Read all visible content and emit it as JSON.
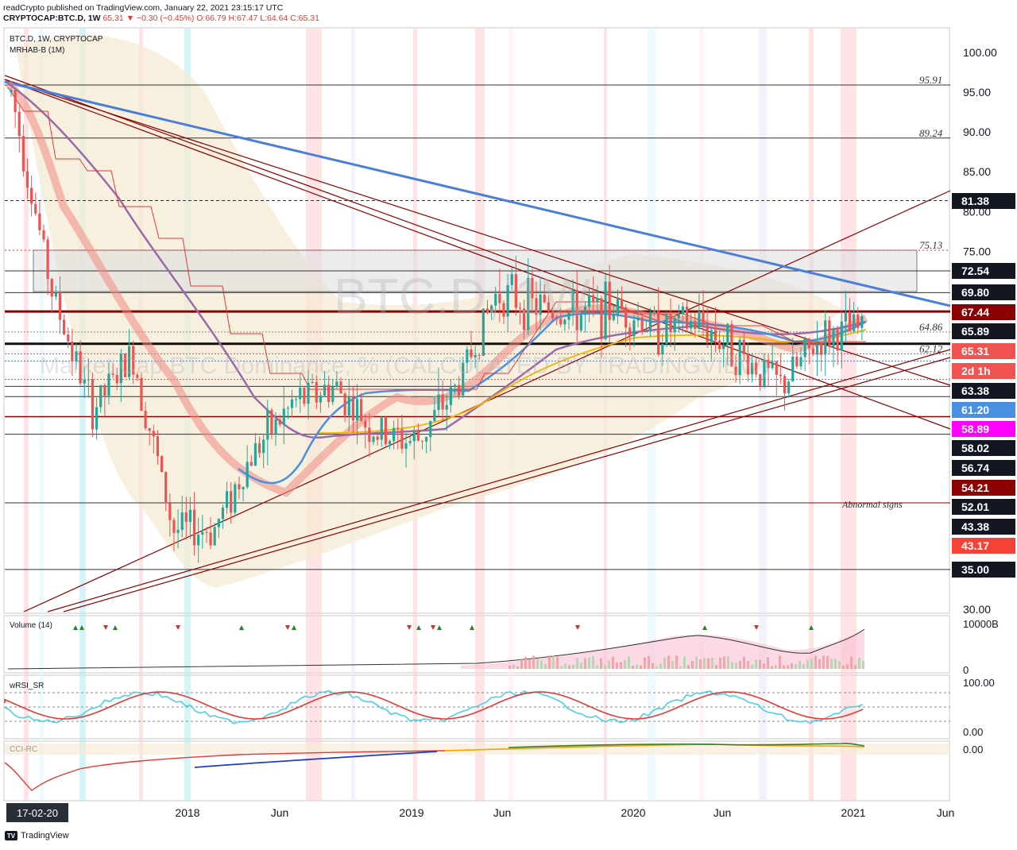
{
  "header": {
    "line1": "readCrypto published on TradingView.com, January 22, 2021 23:15:17 UTC",
    "symbol": "CRYPTOCAP:BTC.D, 1W",
    "change": "65.31 ▼ −0.30 (−0.45%)",
    "ohlc": "O:66.79 H:67.47 L:64.64 C:65.31"
  },
  "legend": {
    "title": "BTC.D, 1W, CRYPTOCAP",
    "indicator": "MRHAB-B (1M)"
  },
  "watermark": {
    "big": "BTC.D, 1W",
    "sub": "Market Cap BTC Dominance, % (CALCULATED BY TRADINGVIEW)"
  },
  "y_axis_ticks": [
    "100.00",
    "95.00",
    "90.00",
    "85.00",
    "80.00",
    "75.00",
    "30.00"
  ],
  "level_labels": [
    {
      "text": "95.91",
      "value": 95.91
    },
    {
      "text": "89.24",
      "value": 89.24
    },
    {
      "text": "75.13",
      "value": 75.13
    },
    {
      "text": "64.86",
      "value": 64.86
    },
    {
      "text": "62.12",
      "value": 62.12
    }
  ],
  "price_pills": [
    {
      "text": "81.38",
      "bg": "#131722",
      "top": 243
    },
    {
      "text": "72.54",
      "bg": "#131722",
      "top": 331
    },
    {
      "text": "69.80",
      "bg": "#131722",
      "top": 358
    },
    {
      "text": "67.44",
      "bg": "#8b0000",
      "top": 383
    },
    {
      "text": "65.89",
      "bg": "#131722",
      "top": 407
    },
    {
      "text": "65.31",
      "bg": "#f05350",
      "top": 432
    },
    {
      "text": "2d 1h",
      "bg": "#f05350",
      "top": 457
    },
    {
      "text": "63.38",
      "bg": "#131722",
      "top": 482
    },
    {
      "text": "61.20",
      "bg": "#4a90e2",
      "top": 506
    },
    {
      "text": "58.89",
      "bg": "#ff00ff",
      "top": 530
    },
    {
      "text": "58.02",
      "bg": "#131722",
      "top": 554
    },
    {
      "text": "56.74",
      "bg": "#131722",
      "top": 579
    },
    {
      "text": "54.21",
      "bg": "#8b0000",
      "top": 604
    },
    {
      "text": "52.01",
      "bg": "#131722",
      "top": 628
    },
    {
      "text": "43.38",
      "bg": "#131722",
      "top": 653
    },
    {
      "text": "43.17",
      "bg": "#f44336",
      "top": 677
    },
    {
      "text": "35.00",
      "bg": "#131722",
      "top": 707
    }
  ],
  "annotation": "Abnormal signs",
  "x_axis_labels": [
    "2018",
    "Jun",
    "2019",
    "Jun",
    "2020",
    "Jun",
    "2021",
    "Jun"
  ],
  "date_box": "17-02-20",
  "volume_pane": {
    "title": "Volume (14)",
    "ticks": [
      "10000B",
      "0"
    ]
  },
  "rsi_pane": {
    "title": "wRSI_SR",
    "ticks": [
      "100.00",
      "0.00"
    ]
  },
  "cci_pane": {
    "title": "CCI-RC",
    "ticks": [
      "0.00"
    ]
  },
  "footer": {
    "brand": "TradingView"
  },
  "colors": {
    "up": "#26a69a",
    "down": "#ef5350",
    "trend": "#8b0000",
    "blue_trend": "#4a7fd8",
    "box": "#d9d9d9"
  },
  "chart_data": {
    "type": "candlestick",
    "title": "BTC.D, 1W, CRYPTOCAP",
    "ylim": [
      30,
      100
    ],
    "x": [
      "2017-02",
      "2017-05",
      "2017-08",
      "2017-11",
      "2018-01",
      "2018-03",
      "2018-06",
      "2018-08",
      "2018-10",
      "2019-01",
      "2019-03",
      "2019-05",
      "2019-07",
      "2019-09",
      "2019-11",
      "2020-01",
      "2020-03",
      "2020-05",
      "2020-07",
      "2020-09",
      "2020-11",
      "2021-01"
    ],
    "values": [
      95,
      70,
      55,
      62,
      40,
      40,
      50,
      56,
      58,
      52,
      51,
      58,
      70,
      68,
      67,
      68,
      65,
      66,
      62,
      58,
      64,
      65.31
    ],
    "horizontal_levels": [
      95.91,
      89.24,
      81.38,
      75.13,
      72.54,
      69.8,
      67.44,
      65.89,
      64.86,
      63.38,
      62.12,
      61.2,
      58.89,
      58.02,
      56.74,
      54.21,
      52.01,
      43.38,
      43.17,
      35.0
    ]
  }
}
